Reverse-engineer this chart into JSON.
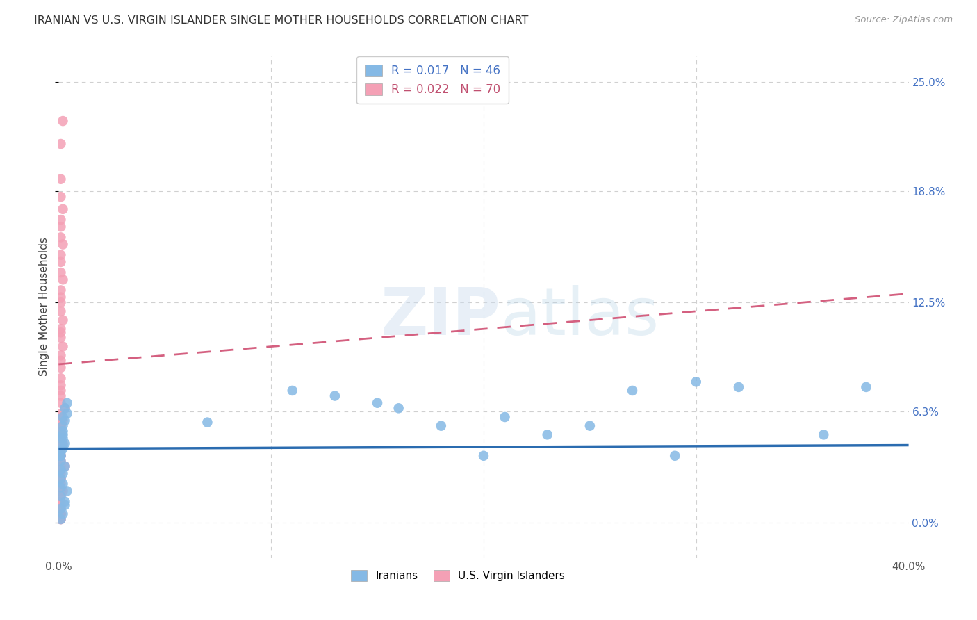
{
  "title": "IRANIAN VS U.S. VIRGIN ISLANDER SINGLE MOTHER HOUSEHOLDS CORRELATION CHART",
  "source": "Source: ZipAtlas.com",
  "ylabel": "Single Mother Households",
  "xlim": [
    0.0,
    0.4
  ],
  "ylim": [
    -0.02,
    0.265
  ],
  "xtick_vals": [
    0.0,
    0.1,
    0.2,
    0.3,
    0.4
  ],
  "xtick_labels": [
    "0.0%",
    "",
    "",
    "",
    "40.0%"
  ],
  "ytick_vals": [
    0.0,
    0.063,
    0.125,
    0.188,
    0.25
  ],
  "ytick_labels_right": [
    "0.0%",
    "6.3%",
    "12.5%",
    "18.8%",
    "25.0%"
  ],
  "iranians_R": 0.017,
  "iranians_N": 46,
  "vi_R": 0.022,
  "vi_N": 70,
  "color_iranian": "#85b9e5",
  "color_vi": "#f4a0b5",
  "color_trend_iranian": "#2b6cb0",
  "color_trend_vi": "#d46080",
  "color_axis_labels": "#4472c4",
  "color_grid": "#d0d0d0",
  "iran_trend_y0": 0.042,
  "iran_trend_y1": 0.044,
  "vi_trend_y0": 0.09,
  "vi_trend_y1": 0.13,
  "iranians_x": [
    0.002,
    0.003,
    0.001,
    0.004,
    0.002,
    0.003,
    0.001,
    0.002,
    0.001,
    0.002,
    0.001,
    0.002,
    0.003,
    0.001,
    0.002,
    0.001,
    0.003,
    0.001,
    0.002,
    0.004,
    0.001,
    0.002,
    0.003,
    0.001,
    0.004,
    0.002,
    0.001,
    0.003,
    0.001,
    0.002,
    0.11,
    0.13,
    0.15,
    0.16,
    0.18,
    0.21,
    0.23,
    0.25,
    0.27,
    0.3,
    0.32,
    0.36,
    0.38,
    0.2,
    0.29,
    0.07
  ],
  "iranians_y": [
    0.055,
    0.058,
    0.048,
    0.062,
    0.052,
    0.045,
    0.04,
    0.06,
    0.038,
    0.05,
    0.035,
    0.042,
    0.065,
    0.03,
    0.048,
    0.025,
    0.032,
    0.02,
    0.028,
    0.068,
    0.015,
    0.022,
    0.012,
    0.008,
    0.018,
    0.005,
    0.002,
    0.01,
    0.038,
    0.044,
    0.075,
    0.072,
    0.068,
    0.065,
    0.055,
    0.06,
    0.05,
    0.055,
    0.075,
    0.08,
    0.077,
    0.05,
    0.077,
    0.038,
    0.038,
    0.057
  ],
  "vi_x": [
    0.001,
    0.002,
    0.001,
    0.001,
    0.002,
    0.001,
    0.001,
    0.001,
    0.002,
    0.001,
    0.001,
    0.001,
    0.002,
    0.001,
    0.001,
    0.001,
    0.001,
    0.002,
    0.001,
    0.001,
    0.001,
    0.002,
    0.001,
    0.001,
    0.001,
    0.001,
    0.001,
    0.001,
    0.001,
    0.001,
    0.001,
    0.001,
    0.001,
    0.001,
    0.001,
    0.001,
    0.001,
    0.001,
    0.001,
    0.001,
    0.001,
    0.001,
    0.001,
    0.001,
    0.001,
    0.001,
    0.001,
    0.001,
    0.001,
    0.001,
    0.001,
    0.001,
    0.001,
    0.001,
    0.001,
    0.001,
    0.001,
    0.001,
    0.001,
    0.001,
    0.003,
    0.002,
    0.001,
    0.002,
    0.001,
    0.003,
    0.001,
    0.002,
    0.001,
    0.001
  ],
  "vi_y": [
    0.215,
    0.228,
    0.195,
    0.185,
    0.178,
    0.172,
    0.168,
    0.162,
    0.158,
    0.152,
    0.148,
    0.142,
    0.138,
    0.132,
    0.128,
    0.125,
    0.12,
    0.115,
    0.11,
    0.108,
    0.105,
    0.1,
    0.095,
    0.092,
    0.088,
    0.082,
    0.078,
    0.075,
    0.072,
    0.068,
    0.062,
    0.06,
    0.058,
    0.055,
    0.052,
    0.048,
    0.045,
    0.042,
    0.038,
    0.035,
    0.032,
    0.028,
    0.025,
    0.022,
    0.018,
    0.015,
    0.012,
    0.008,
    0.005,
    0.002,
    0.055,
    0.048,
    0.042,
    0.038,
    0.032,
    0.025,
    0.018,
    0.01,
    0.005,
    0.002,
    0.065,
    0.058,
    0.05,
    0.045,
    0.038,
    0.032,
    0.025,
    0.018,
    0.01,
    0.005
  ]
}
